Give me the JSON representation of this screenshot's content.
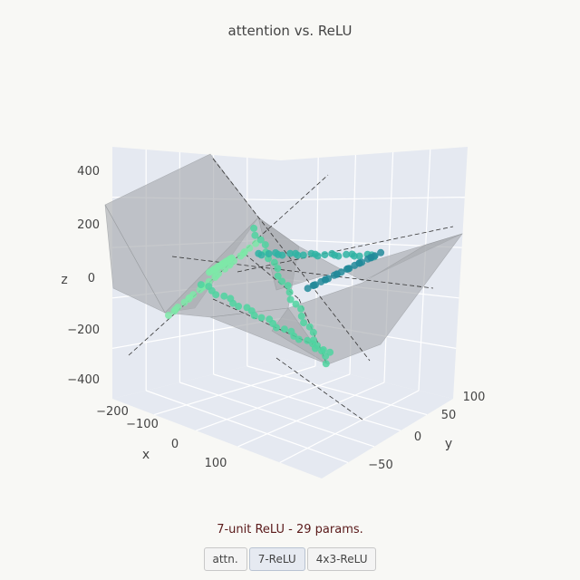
{
  "title": "attention vs. ReLU",
  "caption": "7-unit ReLU - 29 params.",
  "buttons": [
    {
      "label": "attn.",
      "active": false
    },
    {
      "label": "7-ReLU",
      "active": true
    },
    {
      "label": "4x3-ReLU",
      "active": false
    }
  ],
  "chart_data": {
    "type": "scatter3d",
    "title": "attention vs. ReLU",
    "axes": {
      "x": {
        "label": "x",
        "ticks": [
          -200,
          -100,
          0,
          100
        ],
        "range": [
          -260,
          180
        ]
      },
      "y": {
        "label": "y",
        "ticks": [
          -50,
          0,
          50,
          100
        ],
        "range": [
          -90,
          120
        ]
      },
      "z": {
        "label": "z",
        "ticks": [
          -400,
          -200,
          0,
          200,
          400
        ],
        "range": [
          -420,
          430
        ]
      }
    },
    "surface": {
      "color": "#a9acb0",
      "opacity": 0.65
    },
    "lines": {
      "color": "#333333",
      "style": "dashed",
      "count": 8
    },
    "points": {
      "colors": [
        "#7ee8a8",
        "#4fd3a0",
        "#2fb3a3",
        "#238a9a"
      ],
      "count": 140
    },
    "colors": {
      "page_background": "#f8f8f5",
      "plot_background": "#e5e9f1",
      "grid": "#ffffff"
    }
  }
}
